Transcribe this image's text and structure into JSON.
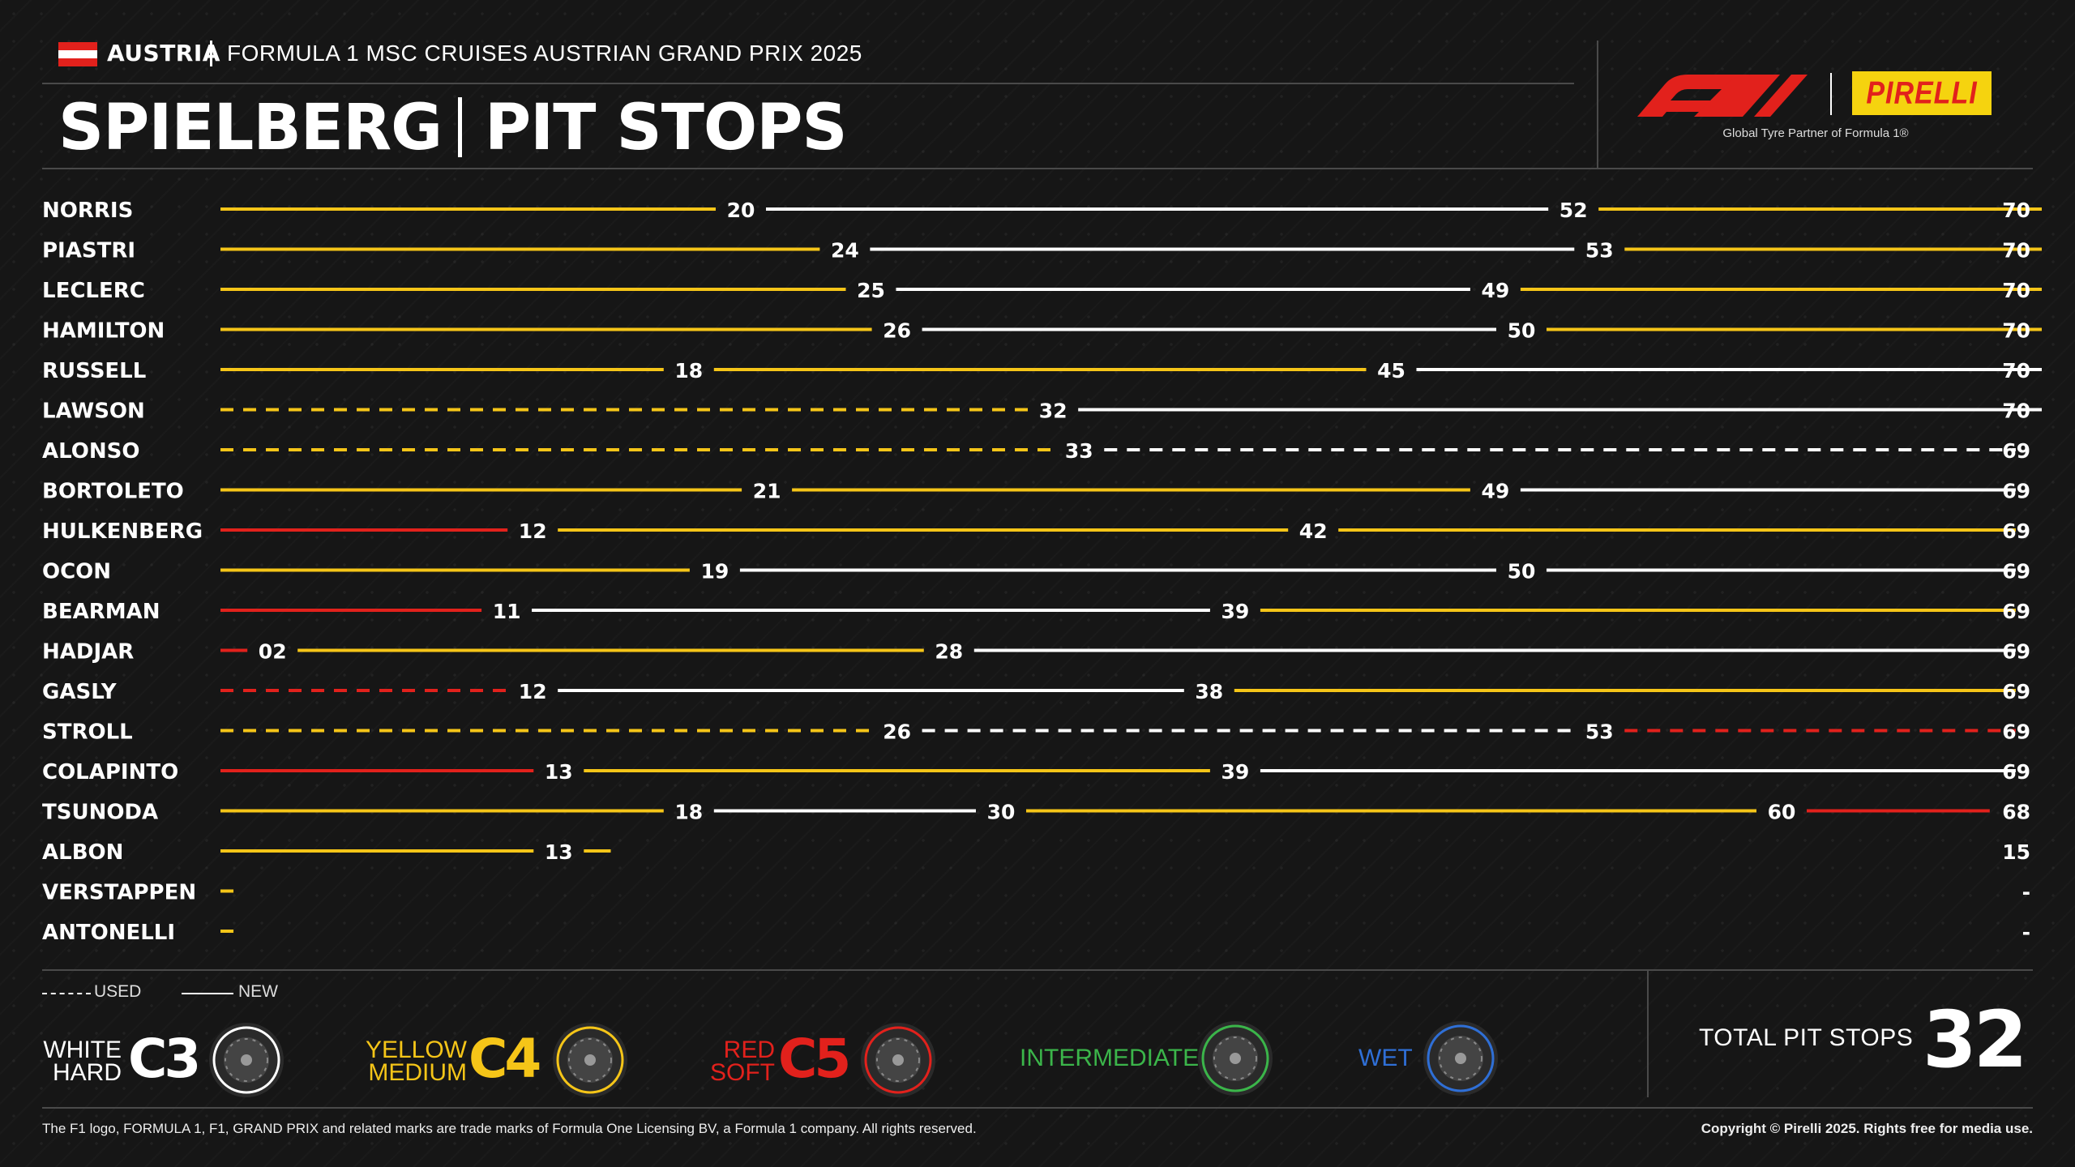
{
  "header": {
    "country": "AUSTRIA",
    "event": "FORMULA 1 MSC CRUISES AUSTRIAN GRAND PRIX 2025",
    "title_left": "SPIELBERG",
    "title_right": "PIT STOPS",
    "pirelli": "PIRELLI",
    "partner": "Global Tyre Partner of Formula 1®"
  },
  "colors": {
    "hard": "#ffffff",
    "medium": "#f5c518",
    "soft": "#e2211c",
    "intermediate": "#3bb54a",
    "wet": "#2f6fd6",
    "background": "#161616"
  },
  "chart_data": {
    "type": "bar",
    "orientation": "horizontal-stacked-stints",
    "x_unit": "lap",
    "drivers": [
      {
        "name": "NORRIS",
        "total": "70",
        "stints": [
          {
            "compound": "medium",
            "used": false,
            "end": 20,
            "label": "20"
          },
          {
            "compound": "hard",
            "used": false,
            "end": 52,
            "label": "52"
          },
          {
            "compound": "medium",
            "used": false,
            "end": 70,
            "label": ""
          }
        ]
      },
      {
        "name": "PIASTRI",
        "total": "70",
        "stints": [
          {
            "compound": "medium",
            "used": false,
            "end": 24,
            "label": "24"
          },
          {
            "compound": "hard",
            "used": false,
            "end": 53,
            "label": "53"
          },
          {
            "compound": "medium",
            "used": false,
            "end": 70,
            "label": ""
          }
        ]
      },
      {
        "name": "LECLERC",
        "total": "70",
        "stints": [
          {
            "compound": "medium",
            "used": false,
            "end": 25,
            "label": "25"
          },
          {
            "compound": "hard",
            "used": false,
            "end": 49,
            "label": "49"
          },
          {
            "compound": "medium",
            "used": false,
            "end": 70,
            "label": ""
          }
        ]
      },
      {
        "name": "HAMILTON",
        "total": "70",
        "stints": [
          {
            "compound": "medium",
            "used": false,
            "end": 26,
            "label": "26"
          },
          {
            "compound": "hard",
            "used": false,
            "end": 50,
            "label": "50"
          },
          {
            "compound": "medium",
            "used": false,
            "end": 70,
            "label": ""
          }
        ]
      },
      {
        "name": "RUSSELL",
        "total": "70",
        "stints": [
          {
            "compound": "medium",
            "used": false,
            "end": 18,
            "label": "18"
          },
          {
            "compound": "medium",
            "used": false,
            "end": 45,
            "label": "45"
          },
          {
            "compound": "hard",
            "used": false,
            "end": 70,
            "label": ""
          }
        ]
      },
      {
        "name": "LAWSON",
        "total": "70",
        "stints": [
          {
            "compound": "medium",
            "used": true,
            "end": 32,
            "label": "32"
          },
          {
            "compound": "hard",
            "used": false,
            "end": 70,
            "label": ""
          }
        ]
      },
      {
        "name": "ALONSO",
        "total": "69",
        "stints": [
          {
            "compound": "medium",
            "used": true,
            "end": 33,
            "label": "33"
          },
          {
            "compound": "hard",
            "used": true,
            "end": 69,
            "label": ""
          }
        ]
      },
      {
        "name": "BORTOLETO",
        "total": "69",
        "stints": [
          {
            "compound": "medium",
            "used": false,
            "end": 21,
            "label": "21"
          },
          {
            "compound": "medium",
            "used": false,
            "end": 49,
            "label": "49"
          },
          {
            "compound": "hard",
            "used": false,
            "end": 69,
            "label": ""
          }
        ]
      },
      {
        "name": "HULKENBERG",
        "total": "69",
        "stints": [
          {
            "compound": "soft",
            "used": false,
            "end": 12,
            "label": "12"
          },
          {
            "compound": "medium",
            "used": false,
            "end": 42,
            "label": "42"
          },
          {
            "compound": "medium",
            "used": false,
            "end": 69,
            "label": ""
          }
        ]
      },
      {
        "name": "OCON",
        "total": "69",
        "stints": [
          {
            "compound": "medium",
            "used": false,
            "end": 19,
            "label": "19"
          },
          {
            "compound": "hard",
            "used": false,
            "end": 50,
            "label": "50"
          },
          {
            "compound": "hard",
            "used": false,
            "end": 69,
            "label": ""
          }
        ]
      },
      {
        "name": "BEARMAN",
        "total": "69",
        "stints": [
          {
            "compound": "soft",
            "used": false,
            "end": 11,
            "label": "11"
          },
          {
            "compound": "hard",
            "used": false,
            "end": 39,
            "label": "39"
          },
          {
            "compound": "medium",
            "used": false,
            "end": 69,
            "label": ""
          }
        ]
      },
      {
        "name": "HADJAR",
        "total": "69",
        "stints": [
          {
            "compound": "soft",
            "used": false,
            "end": 2,
            "label": "02"
          },
          {
            "compound": "medium",
            "used": false,
            "end": 28,
            "label": "28"
          },
          {
            "compound": "hard",
            "used": false,
            "end": 69,
            "label": ""
          }
        ]
      },
      {
        "name": "GASLY",
        "total": "69",
        "stints": [
          {
            "compound": "soft",
            "used": true,
            "end": 12,
            "label": "12"
          },
          {
            "compound": "hard",
            "used": false,
            "end": 38,
            "label": "38"
          },
          {
            "compound": "medium",
            "used": false,
            "end": 69,
            "label": ""
          }
        ]
      },
      {
        "name": "STROLL",
        "total": "69",
        "stints": [
          {
            "compound": "medium",
            "used": true,
            "end": 26,
            "label": "26"
          },
          {
            "compound": "hard",
            "used": true,
            "end": 53,
            "label": "53"
          },
          {
            "compound": "soft",
            "used": true,
            "end": 69,
            "label": ""
          }
        ]
      },
      {
        "name": "COLAPINTO",
        "total": "69",
        "stints": [
          {
            "compound": "soft",
            "used": false,
            "end": 13,
            "label": "13"
          },
          {
            "compound": "medium",
            "used": false,
            "end": 39,
            "label": "39"
          },
          {
            "compound": "hard",
            "used": false,
            "end": 69,
            "label": ""
          }
        ]
      },
      {
        "name": "TSUNODA",
        "total": "68",
        "stints": [
          {
            "compound": "medium",
            "used": false,
            "end": 18,
            "label": "18"
          },
          {
            "compound": "hard",
            "used": false,
            "end": 30,
            "label": "30"
          },
          {
            "compound": "medium",
            "used": false,
            "end": 60,
            "label": "60"
          },
          {
            "compound": "soft",
            "used": false,
            "end": 68,
            "label": ""
          }
        ]
      },
      {
        "name": "ALBON",
        "total": "15",
        "stints": [
          {
            "compound": "medium",
            "used": false,
            "end": 13,
            "label": "13"
          },
          {
            "compound": "medium",
            "used": false,
            "end": 15,
            "label": ""
          }
        ]
      },
      {
        "name": "VERSTAPPEN",
        "total": "-",
        "stints": [
          {
            "compound": "medium",
            "used": false,
            "end": 0.5,
            "label": ""
          }
        ]
      },
      {
        "name": "ANTONELLI",
        "total": "-",
        "stints": [
          {
            "compound": "medium",
            "used": false,
            "end": 0.5,
            "label": ""
          }
        ]
      }
    ]
  },
  "legend": {
    "used": "USED",
    "new": "NEW",
    "hard_name_1": "WHITE",
    "hard_name_2": "HARD",
    "hard_code": "C3",
    "medium_name_1": "YELLOW",
    "medium_name_2": "MEDIUM",
    "medium_code": "C4",
    "soft_name_1": "RED",
    "soft_name_2": "SOFT",
    "soft_code": "C5",
    "intermediate": "INTERMEDIATE",
    "wet": "WET"
  },
  "total": {
    "label": "TOTAL PIT STOPS",
    "value": "32"
  },
  "footer": {
    "left": "The F1 logo, FORMULA 1, F1, GRAND PRIX and related marks are trade marks of Formula One Licensing BV, a Formula 1 company. All rights reserved.",
    "right": "Copyright © Pirelli 2025. Rights free for media use."
  }
}
